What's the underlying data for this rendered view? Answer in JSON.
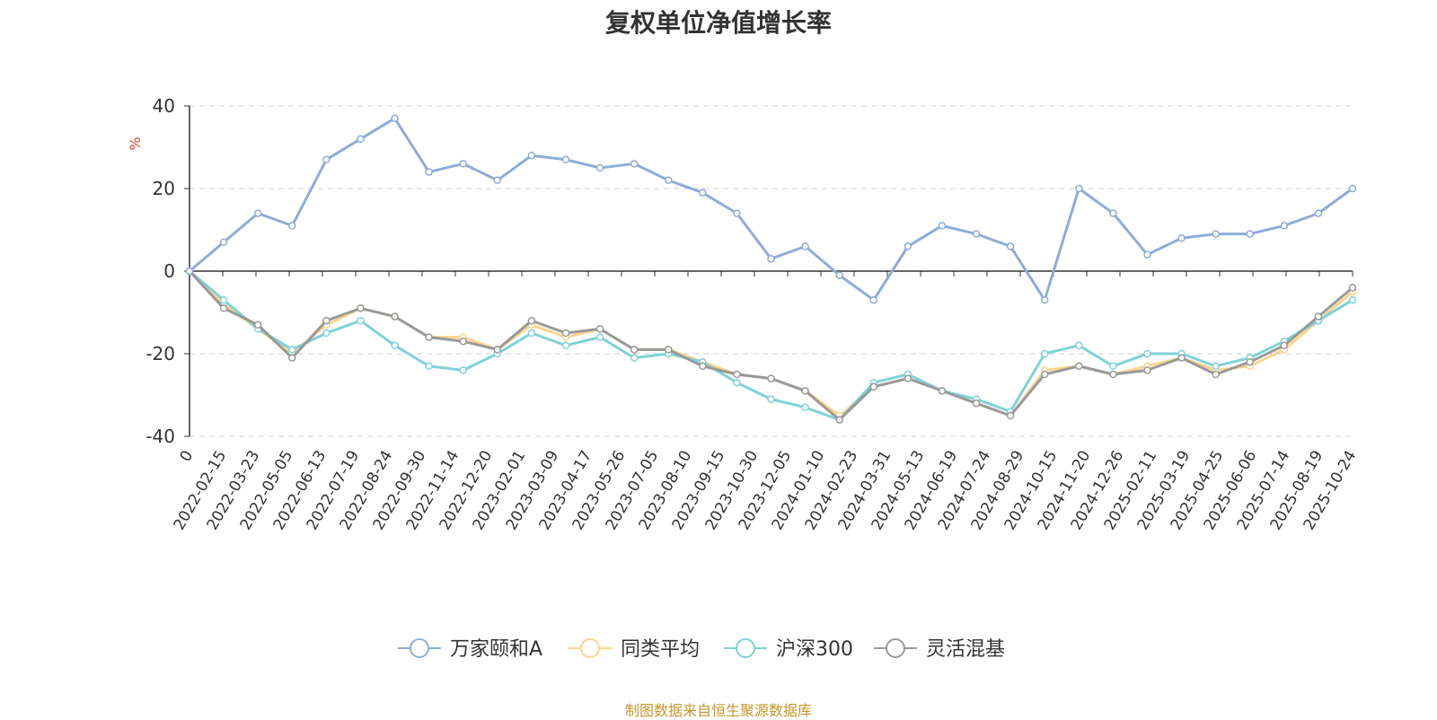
{
  "title": "复权单位净值增长率",
  "source": "制图数据来自恒生聚源数据库",
  "y_unit": "%",
  "chart_data": {
    "type": "line",
    "title": "复权单位净值增长率",
    "ylabel": "%",
    "ylim": [
      -40,
      40
    ],
    "yticks": [
      "40",
      "20",
      "0",
      "-20",
      "-40"
    ],
    "x_start_label": "0",
    "x_labels": [
      "2022-02-15",
      "2022-03-23",
      "2022-05-05",
      "2022-06-13",
      "2022-07-19",
      "2022-08-24",
      "2022-09-30",
      "2022-11-14",
      "2022-12-20",
      "2023-02-01",
      "2023-03-09",
      "2023-04-17",
      "2023-05-26",
      "2023-07-05",
      "2023-08-10",
      "2023-09-15",
      "2023-10-30",
      "2023-12-05",
      "2024-01-10",
      "2024-02-23",
      "2024-03-31",
      "2024-05-13",
      "2024-06-19",
      "2024-07-24",
      "2024-08-29",
      "2024-10-15",
      "2024-11-20",
      "2024-12-26",
      "2025-02-11",
      "2025-03-19",
      "2025-04-25",
      "2025-06-06",
      "2025-07-14",
      "2025-08-19",
      "2025-10-24"
    ],
    "series": [
      {
        "name": "万家颐和A",
        "color": "#8eacd8",
        "values": [
          0,
          7,
          14,
          11,
          27,
          32,
          37,
          24,
          26,
          22,
          28,
          27,
          25,
          26,
          22,
          19,
          14,
          3,
          6,
          -1,
          -7,
          6,
          11,
          9,
          6,
          -7,
          20,
          14,
          4,
          8,
          9,
          9,
          11,
          14,
          20
        ]
      },
      {
        "name": "同类平均",
        "color": "#fcd48c",
        "values": [
          0,
          -8,
          -14,
          -20,
          -13,
          -9,
          -11,
          -16,
          -16,
          -19,
          -13,
          -16,
          -14,
          -19,
          -19,
          -22,
          -25,
          -26,
          -29,
          -35,
          -28,
          -26,
          -29,
          -32,
          -35,
          -24,
          -23,
          -25,
          -23,
          -21,
          -24,
          -23,
          -19,
          -12,
          -5
        ]
      },
      {
        "name": "沪深300",
        "color": "#7fd2d8",
        "values": [
          0,
          -7,
          -14,
          -19,
          -15,
          -12,
          -18,
          -23,
          -24,
          -20,
          -15,
          -18,
          -16,
          -21,
          -20,
          -22,
          -27,
          -31,
          -33,
          -36,
          -27,
          -25,
          -29,
          -31,
          -34,
          -20,
          -18,
          -23,
          -20,
          -20,
          -23,
          -21,
          -17,
          -12,
          -7
        ]
      },
      {
        "name": "灵活混基",
        "color": "#999999",
        "values": [
          0,
          -9,
          -13,
          -21,
          -12,
          -9,
          -11,
          -16,
          -17,
          -19,
          -12,
          -15,
          -14,
          -19,
          -19,
          -23,
          -25,
          -26,
          -29,
          -36,
          -28,
          -26,
          -29,
          -32,
          -35,
          -25,
          -23,
          -25,
          -24,
          -21,
          -25,
          -22,
          -18,
          -11,
          -4
        ]
      }
    ]
  }
}
